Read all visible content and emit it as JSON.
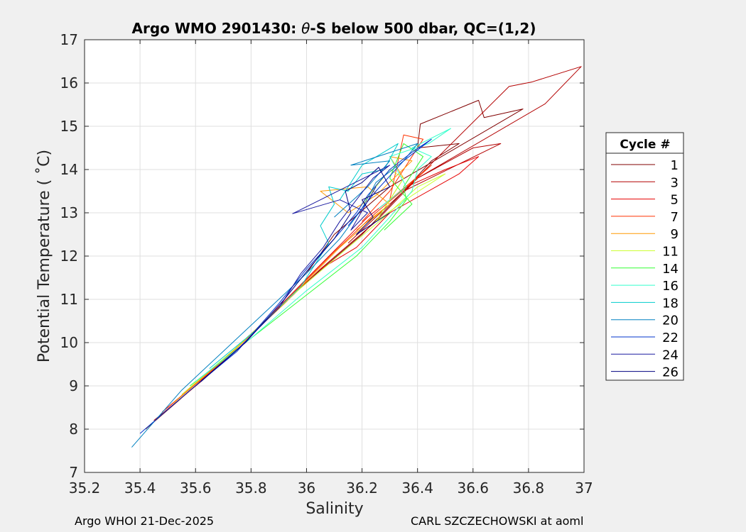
{
  "chart_data": {
    "type": "line",
    "title": "Argo WMO 2901430: θ-S below 500 dbar,  QC=(1,2)",
    "title_parts": {
      "prefix": "Argo WMO 2901430: ",
      "symbol": "θ",
      "suffix": "-S below 500 dbar,  QC=(1,2)"
    },
    "xlabel": "Salinity",
    "ylabel": "Potential Temperature ( ˚C)",
    "xlim": [
      35.2,
      37
    ],
    "ylim": [
      7,
      17
    ],
    "xticks": [
      35.2,
      35.4,
      35.6,
      35.8,
      36,
      36.2,
      36.4,
      36.6,
      36.8,
      37
    ],
    "xtick_labels": [
      "35.2",
      "35.4",
      "35.6",
      "35.8",
      "36",
      "36.2",
      "36.4",
      "36.6",
      "36.8",
      "37"
    ],
    "yticks": [
      7,
      8,
      9,
      10,
      11,
      12,
      13,
      14,
      15,
      16,
      17
    ],
    "ytick_labels": [
      "7",
      "8",
      "9",
      "10",
      "11",
      "12",
      "13",
      "14",
      "15",
      "16",
      "17"
    ],
    "grid": true,
    "legend_title": "Cycle #",
    "legend_position": "right",
    "series": [
      {
        "name": "1",
        "color": "#800000",
        "points": [
          [
            35.42,
            8.0
          ],
          [
            35.6,
            9.0
          ],
          [
            35.8,
            10.2
          ],
          [
            36.0,
            11.4
          ],
          [
            36.2,
            12.5
          ],
          [
            36.35,
            13.5
          ],
          [
            36.45,
            14.2
          ],
          [
            36.55,
            14.6
          ],
          [
            36.4,
            14.5
          ],
          [
            36.41,
            15.05
          ],
          [
            36.62,
            15.6
          ],
          [
            36.64,
            15.2
          ],
          [
            36.78,
            15.4
          ],
          [
            36.3,
            13.6
          ],
          [
            36.1,
            12.5
          ],
          [
            36.0,
            11.6
          ]
        ]
      },
      {
        "name": "3",
        "color": "#b30000",
        "points": [
          [
            35.45,
            8.2
          ],
          [
            35.62,
            9.1
          ],
          [
            35.82,
            10.3
          ],
          [
            36.05,
            11.7
          ],
          [
            36.25,
            12.8
          ],
          [
            36.4,
            13.8
          ],
          [
            36.6,
            14.5
          ],
          [
            36.7,
            14.6
          ],
          [
            36.35,
            13.5
          ],
          [
            36.73,
            15.92
          ],
          [
            36.81,
            16.02
          ],
          [
            36.99,
            16.38
          ],
          [
            36.86,
            15.52
          ],
          [
            36.4,
            13.8
          ],
          [
            36.15,
            12.3
          ]
        ]
      },
      {
        "name": "5",
        "color": "#e60000",
        "points": [
          [
            35.48,
            8.4
          ],
          [
            35.65,
            9.3
          ],
          [
            35.85,
            10.5
          ],
          [
            36.05,
            11.8
          ],
          [
            36.22,
            12.9
          ],
          [
            36.36,
            13.6
          ],
          [
            36.5,
            14.0
          ],
          [
            36.62,
            14.3
          ],
          [
            36.55,
            13.9
          ],
          [
            36.3,
            13.0
          ],
          [
            36.18,
            12.2
          ],
          [
            36.05,
            11.7
          ]
        ]
      },
      {
        "name": "7",
        "color": "#ff3300",
        "points": [
          [
            35.5,
            8.5
          ],
          [
            35.7,
            9.6
          ],
          [
            35.9,
            10.8
          ],
          [
            36.1,
            12.1
          ],
          [
            36.25,
            13.0
          ],
          [
            36.38,
            13.7
          ],
          [
            36.45,
            14.1
          ],
          [
            36.3,
            13.3
          ],
          [
            36.35,
            14.8
          ],
          [
            36.42,
            14.7
          ],
          [
            36.3,
            13.5
          ],
          [
            36.2,
            12.8
          ]
        ]
      },
      {
        "name": "9",
        "color": "#ff9900",
        "points": [
          [
            35.52,
            8.6
          ],
          [
            35.72,
            9.7
          ],
          [
            35.92,
            10.9
          ],
          [
            36.12,
            12.2
          ],
          [
            36.28,
            13.1
          ],
          [
            36.35,
            13.8
          ],
          [
            36.3,
            14.3
          ],
          [
            36.38,
            14.2
          ],
          [
            36.25,
            13.4
          ],
          [
            36.15,
            13.0
          ],
          [
            36.05,
            13.5
          ],
          [
            36.22,
            13.6
          ],
          [
            36.3,
            13.2
          ],
          [
            36.18,
            12.6
          ]
        ]
      },
      {
        "name": "11",
        "color": "#ccff33",
        "points": [
          [
            35.55,
            8.8
          ],
          [
            35.75,
            9.9
          ],
          [
            35.95,
            11.1
          ],
          [
            36.15,
            12.2
          ],
          [
            36.28,
            12.9
          ],
          [
            36.4,
            13.6
          ],
          [
            36.5,
            13.9
          ],
          [
            36.38,
            13.4
          ],
          [
            36.25,
            12.8
          ],
          [
            36.35,
            13.8
          ],
          [
            36.3,
            14.0
          ],
          [
            36.2,
            13.2
          ]
        ]
      },
      {
        "name": "14",
        "color": "#33ff33",
        "points": [
          [
            35.58,
            9.0
          ],
          [
            35.78,
            10.0
          ],
          [
            35.98,
            11.0
          ],
          [
            36.18,
            12.0
          ],
          [
            36.3,
            12.8
          ],
          [
            36.36,
            13.3
          ],
          [
            36.35,
            13.6
          ],
          [
            36.42,
            14.3
          ],
          [
            36.35,
            14.6
          ],
          [
            36.3,
            13.8
          ],
          [
            36.38,
            13.2
          ],
          [
            36.28,
            12.6
          ]
        ]
      },
      {
        "name": "16",
        "color": "#33ffcc",
        "points": [
          [
            35.6,
            9.1
          ],
          [
            35.8,
            10.1
          ],
          [
            36.0,
            11.2
          ],
          [
            36.2,
            12.2
          ],
          [
            36.3,
            12.9
          ],
          [
            36.38,
            13.5
          ],
          [
            36.4,
            14.0
          ],
          [
            36.45,
            14.3
          ],
          [
            36.38,
            14.5
          ],
          [
            36.52,
            14.95
          ],
          [
            36.44,
            14.6
          ],
          [
            36.3,
            14.3
          ],
          [
            36.36,
            13.6
          ],
          [
            36.26,
            13.1
          ]
        ]
      },
      {
        "name": "18",
        "color": "#00cccc",
        "points": [
          [
            35.65,
            9.4
          ],
          [
            35.82,
            10.3
          ],
          [
            35.98,
            11.3
          ],
          [
            36.08,
            12.3
          ],
          [
            36.05,
            12.7
          ],
          [
            36.1,
            13.2
          ],
          [
            36.08,
            13.6
          ],
          [
            36.15,
            13.5
          ],
          [
            36.2,
            13.9
          ],
          [
            36.28,
            14.0
          ],
          [
            36.33,
            14.6
          ],
          [
            36.2,
            14.1
          ],
          [
            36.12,
            13.3
          ]
        ]
      },
      {
        "name": "20",
        "color": "#0080c0",
        "points": [
          [
            35.37,
            7.58
          ],
          [
            35.55,
            8.9
          ],
          [
            35.7,
            9.8
          ],
          [
            35.85,
            10.7
          ],
          [
            36.0,
            11.6
          ],
          [
            36.12,
            12.4
          ],
          [
            36.2,
            13.1
          ],
          [
            36.25,
            13.7
          ],
          [
            36.35,
            14.2
          ],
          [
            36.4,
            14.6
          ],
          [
            36.16,
            14.1
          ],
          [
            36.3,
            14.2
          ],
          [
            36.22,
            13.6
          ],
          [
            36.1,
            12.9
          ]
        ]
      },
      {
        "name": "22",
        "color": "#0033cc",
        "points": [
          [
            35.4,
            7.9
          ],
          [
            35.58,
            8.9
          ],
          [
            35.75,
            9.8
          ],
          [
            35.9,
            10.9
          ],
          [
            36.0,
            11.7
          ],
          [
            36.1,
            12.4
          ],
          [
            36.18,
            13.0
          ],
          [
            36.22,
            13.4
          ],
          [
            36.3,
            14.0
          ],
          [
            36.38,
            14.4
          ],
          [
            36.45,
            14.7
          ],
          [
            36.35,
            14.2
          ],
          [
            36.25,
            13.5
          ],
          [
            36.15,
            12.7
          ]
        ]
      },
      {
        "name": "24",
        "color": "#1a1aa0",
        "points": [
          [
            35.6,
            9.0
          ],
          [
            35.76,
            9.9
          ],
          [
            35.9,
            10.8
          ],
          [
            35.98,
            11.6
          ],
          [
            36.06,
            12.2
          ],
          [
            36.12,
            12.8
          ],
          [
            36.18,
            13.3
          ],
          [
            36.24,
            13.8
          ],
          [
            36.3,
            14.1
          ],
          [
            35.95,
            12.98
          ],
          [
            36.12,
            13.3
          ],
          [
            36.22,
            13.0
          ],
          [
            36.16,
            12.6
          ],
          [
            36.25,
            13.6
          ]
        ]
      },
      {
        "name": "26",
        "color": "#000080",
        "points": [
          [
            35.62,
            9.1
          ],
          [
            35.78,
            10.0
          ],
          [
            35.92,
            11.0
          ],
          [
            36.02,
            11.8
          ],
          [
            36.1,
            12.4
          ],
          [
            36.16,
            13.0
          ],
          [
            36.14,
            13.5
          ],
          [
            36.2,
            13.7
          ],
          [
            36.26,
            14.05
          ],
          [
            36.3,
            13.6
          ],
          [
            36.2,
            13.3
          ],
          [
            36.24,
            12.9
          ],
          [
            36.18,
            12.5
          ],
          [
            36.3,
            13.0
          ]
        ]
      }
    ]
  },
  "footer": {
    "left": "Argo WHOI 21-Dec-2025",
    "right": "CARL SZCZECHOWSKI at aoml"
  }
}
